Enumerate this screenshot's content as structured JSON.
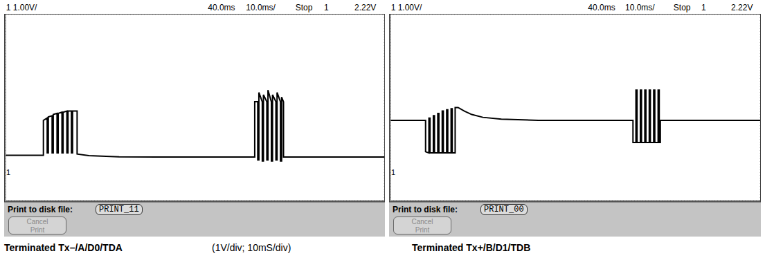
{
  "chart_data": [
    {
      "type": "line",
      "header": [
        "1 1.00V/",
        "40.0ms",
        "10.0ms/",
        "Stop",
        "1",
        "2.22V"
      ],
      "footer": {
        "label": "Print to disk file:",
        "file": "PRINT_11",
        "button": [
          "Cancel",
          "Print"
        ]
      },
      "caption": "Terminated Tx–/A/D0/TDA",
      "annotation": "(1V/div; 10mS/div)",
      "ground_marker": "1",
      "ground": 0,
      "x": [
        0,
        10,
        10,
        11,
        11,
        11.3,
        11.3,
        12.3,
        12.3,
        12.6,
        12.6,
        13.6,
        13.6,
        13.9,
        13.9,
        14.9,
        14.9,
        15.2,
        15.2,
        16.2,
        16.2,
        16.5,
        16.5,
        17.4,
        17.4,
        17.7,
        17.7,
        18.9,
        18.9,
        22,
        30,
        40,
        65.8,
        65.8,
        66.6,
        66.6,
        66.9,
        66.9,
        67.8,
        67.8,
        68.1,
        68.1,
        69,
        69,
        69.3,
        69.3,
        70.2,
        70.2,
        70.5,
        70.5,
        71.4,
        71.4,
        71.7,
        71.7,
        72.6,
        72.6,
        72.9,
        72.9,
        73.4,
        73.4,
        100
      ],
      "values": [
        0.7,
        0.7,
        2.2,
        2.3,
        0.8,
        0.8,
        2.35,
        2.4,
        0.8,
        0.8,
        2.45,
        2.5,
        0.8,
        0.8,
        2.5,
        2.55,
        0.8,
        0.8,
        2.55,
        2.6,
        0.8,
        0.8,
        2.6,
        2.6,
        0.8,
        0.8,
        2.6,
        2.6,
        0.75,
        0.68,
        0.63,
        0.62,
        0.62,
        3.0,
        3.0,
        0.5,
        0.5,
        3.4,
        3.0,
        0.45,
        0.45,
        3.3,
        3.0,
        0.5,
        0.5,
        3.5,
        3.0,
        0.45,
        0.45,
        3.3,
        3.0,
        0.5,
        0.5,
        3.4,
        3.0,
        0.45,
        0.45,
        3.2,
        3.0,
        0.62,
        0.62
      ],
      "color": "#000000",
      "xlim": [
        0,
        100
      ],
      "xticks": [
        0,
        10,
        20,
        30,
        40,
        50,
        60,
        70,
        80,
        90,
        100
      ],
      "ylim": [
        -1.25,
        6.75
      ],
      "yticks": [
        -1.25,
        -0.25,
        0.75,
        1.75,
        2.75,
        3.75,
        4.75,
        5.75,
        6.75
      ],
      "grid": true,
      "tick_labels": false
    },
    {
      "type": "line",
      "header": [
        "1 1.00V/",
        "40.0ms",
        "10.0ms/",
        "Stop",
        "1",
        "2.22V"
      ],
      "footer": {
        "label": "Print to disk file:",
        "file": "PRINT_00",
        "button": [
          "Cancel",
          "Print"
        ]
      },
      "caption": "Terminated Tx+/B/D1/TDB",
      "ground_marker": "1",
      "ground": 0,
      "x": [
        0,
        9.5,
        9.5,
        10.4,
        10.4,
        10.7,
        10.7,
        11.6,
        11.6,
        11.9,
        11.9,
        12.8,
        12.8,
        13.1,
        13.1,
        14,
        14,
        14.3,
        14.3,
        15.2,
        15.2,
        15.5,
        15.5,
        16.4,
        16.4,
        16.7,
        16.7,
        17.5,
        17.5,
        18.3,
        20,
        22,
        25,
        30,
        40,
        65.6,
        65.6,
        66.4,
        66.4,
        66.7,
        66.7,
        67.6,
        67.6,
        67.9,
        67.9,
        68.8,
        68.8,
        69.1,
        69.1,
        70,
        70,
        70.3,
        70.3,
        71.2,
        71.2,
        71.5,
        71.5,
        72.4,
        72.4,
        72.7,
        72.7,
        73,
        73,
        100
      ],
      "values": [
        2.2,
        2.2,
        0.85,
        0.8,
        2.3,
        2.3,
        0.8,
        0.8,
        2.4,
        2.4,
        0.8,
        0.8,
        2.5,
        2.5,
        0.8,
        0.8,
        2.6,
        2.6,
        0.8,
        0.8,
        2.65,
        2.65,
        0.8,
        0.8,
        2.7,
        2.7,
        0.8,
        0.8,
        2.75,
        2.75,
        2.6,
        2.45,
        2.33,
        2.25,
        2.2,
        2.2,
        1.25,
        1.25,
        3.5,
        3.5,
        1.25,
        1.25,
        3.5,
        3.5,
        1.25,
        1.25,
        3.5,
        3.5,
        1.25,
        1.25,
        3.5,
        3.5,
        1.25,
        1.25,
        3.5,
        3.5,
        1.25,
        1.25,
        3.5,
        3.5,
        1.25,
        1.25,
        2.2,
        2.2
      ],
      "color": "#000000",
      "xlim": [
        0,
        100
      ],
      "xticks": [
        0,
        10,
        20,
        30,
        40,
        50,
        60,
        70,
        80,
        90,
        100
      ],
      "ylim": [
        -1.25,
        6.75
      ],
      "yticks": [
        -1.25,
        -0.25,
        0.75,
        1.75,
        2.75,
        3.75,
        4.75,
        5.75,
        6.75
      ],
      "grid": true,
      "tick_labels": false
    }
  ]
}
